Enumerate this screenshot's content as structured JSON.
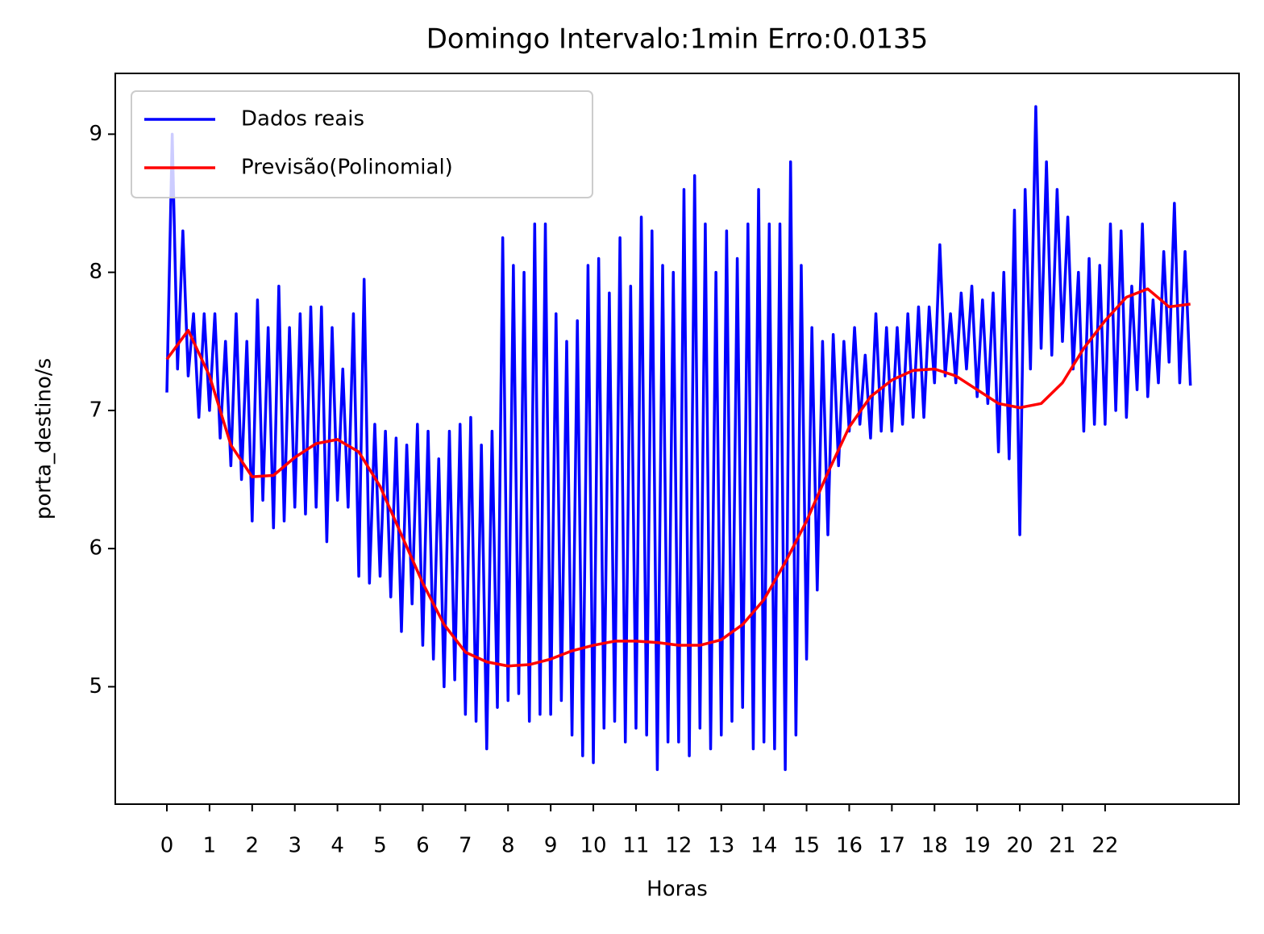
{
  "chart_data": {
    "type": "line",
    "title": "Domingo Intervalo:1min Erro:0.0135",
    "xlabel": "Horas",
    "ylabel": "porta_destino/s",
    "xlim": [
      -1.21,
      25.14
    ],
    "ylim": [
      4.15,
      9.44
    ],
    "xticks": [
      0,
      1,
      2,
      3,
      4,
      5,
      6,
      7,
      8,
      9,
      10,
      11,
      12,
      13,
      14,
      15,
      16,
      17,
      18,
      19,
      20,
      21,
      22
    ],
    "yticks": [
      5,
      6,
      7,
      8,
      9
    ],
    "legend": "upper left",
    "series": [
      {
        "name": "Dados reais",
        "color": "#0000ff",
        "x": [
          0,
          0.125,
          0.25,
          0.375,
          0.5,
          0.625,
          0.75,
          0.875,
          1,
          1.125,
          1.25,
          1.375,
          1.5,
          1.625,
          1.75,
          1.875,
          2,
          2.125,
          2.25,
          2.375,
          2.5,
          2.625,
          2.75,
          2.875,
          3,
          3.125,
          3.25,
          3.375,
          3.5,
          3.625,
          3.75,
          3.875,
          4,
          4.125,
          4.25,
          4.375,
          4.5,
          4.625,
          4.75,
          4.875,
          5,
          5.125,
          5.25,
          5.375,
          5.5,
          5.625,
          5.75,
          5.875,
          6,
          6.125,
          6.25,
          6.375,
          6.5,
          6.625,
          6.75,
          6.875,
          7,
          7.125,
          7.25,
          7.375,
          7.5,
          7.625,
          7.75,
          7.875,
          8,
          8.125,
          8.25,
          8.375,
          8.5,
          8.625,
          8.75,
          8.875,
          9,
          9.125,
          9.25,
          9.375,
          9.5,
          9.625,
          9.75,
          9.875,
          10,
          10.125,
          10.25,
          10.375,
          10.5,
          10.625,
          10.75,
          10.875,
          11,
          11.125,
          11.25,
          11.375,
          11.5,
          11.625,
          11.75,
          11.875,
          12,
          12.125,
          12.25,
          12.375,
          12.5,
          12.625,
          12.75,
          12.875,
          13,
          13.125,
          13.25,
          13.375,
          13.5,
          13.625,
          13.75,
          13.875,
          14,
          14.125,
          14.25,
          14.375,
          14.5,
          14.625,
          14.75,
          14.875,
          15,
          15.125,
          15.25,
          15.375,
          15.5,
          15.625,
          15.75,
          15.875,
          16,
          16.125,
          16.25,
          16.375,
          16.5,
          16.625,
          16.75,
          16.875,
          17,
          17.125,
          17.25,
          17.375,
          17.5,
          17.625,
          17.75,
          17.875,
          18,
          18.125,
          18.25,
          18.375,
          18.5,
          18.625,
          18.75,
          18.875,
          19,
          19.125,
          19.25,
          19.375,
          19.5,
          19.625,
          19.75,
          19.875,
          20,
          20.125,
          20.25,
          20.375,
          20.5,
          20.625,
          20.75,
          20.875,
          21,
          21.125,
          21.25,
          21.375,
          21.5,
          21.625,
          21.75,
          21.875,
          22,
          22.125,
          22.25,
          22.375,
          22.5,
          22.625,
          22.75,
          22.875,
          23,
          23.125,
          23.25,
          23.375,
          23.5,
          23.625,
          23.75,
          23.875,
          24
        ],
        "values": [
          7.13,
          9.0,
          7.3,
          8.3,
          7.25,
          7.7,
          6.95,
          7.7,
          7.0,
          7.7,
          6.8,
          7.5,
          6.6,
          7.7,
          6.5,
          7.5,
          6.2,
          7.8,
          6.35,
          7.6,
          6.15,
          7.9,
          6.2,
          7.6,
          6.3,
          7.7,
          6.25,
          7.75,
          6.3,
          7.75,
          6.05,
          7.6,
          6.35,
          7.3,
          6.3,
          7.7,
          5.8,
          7.95,
          5.75,
          6.9,
          5.8,
          6.85,
          5.65,
          6.8,
          5.4,
          6.75,
          5.6,
          6.9,
          5.3,
          6.85,
          5.2,
          6.65,
          5.0,
          6.85,
          5.05,
          6.9,
          4.8,
          6.95,
          4.75,
          6.75,
          4.55,
          6.85,
          4.85,
          8.25,
          4.9,
          8.05,
          4.95,
          8.0,
          4.75,
          8.35,
          4.8,
          8.35,
          4.8,
          7.7,
          4.9,
          7.5,
          4.65,
          7.65,
          4.5,
          8.05,
          4.45,
          8.1,
          4.7,
          7.85,
          4.75,
          8.25,
          4.6,
          7.9,
          4.7,
          8.4,
          4.65,
          8.3,
          4.4,
          8.05,
          4.6,
          8.0,
          4.6,
          8.6,
          4.5,
          8.7,
          4.7,
          8.35,
          4.55,
          8.0,
          4.65,
          8.3,
          4.75,
          8.1,
          4.85,
          8.35,
          4.55,
          8.6,
          4.6,
          8.35,
          4.55,
          8.35,
          4.4,
          8.8,
          4.65,
          8.05,
          5.2,
          7.6,
          5.7,
          7.5,
          6.1,
          7.55,
          6.6,
          7.5,
          6.85,
          7.6,
          6.9,
          7.4,
          6.8,
          7.7,
          6.85,
          7.6,
          6.85,
          7.6,
          6.9,
          7.7,
          6.95,
          7.75,
          6.95,
          7.75,
          7.2,
          8.2,
          7.25,
          7.7,
          7.2,
          7.85,
          7.3,
          7.9,
          7.1,
          7.8,
          7.05,
          7.85,
          6.7,
          8.0,
          6.65,
          8.45,
          6.1,
          8.6,
          7.3,
          9.2,
          7.45,
          8.8,
          7.4,
          8.6,
          7.5,
          8.4,
          7.3,
          8.0,
          6.85,
          8.1,
          6.9,
          8.05,
          6.9,
          8.35,
          7.0,
          8.3,
          6.95,
          7.9,
          7.15,
          8.35,
          7.1,
          7.8,
          7.2,
          8.15,
          7.35,
          8.5,
          7.2,
          8.15,
          7.18
        ]
      },
      {
        "name": "Previsão(Polinomial)",
        "color": "#ff0000",
        "x": [
          0,
          0.5,
          1,
          1.5,
          2,
          2.5,
          3,
          3.5,
          4,
          4.5,
          5,
          5.5,
          6,
          6.5,
          7,
          7.5,
          8,
          8.5,
          9,
          9.5,
          10,
          10.5,
          11,
          11.5,
          12,
          12.5,
          13,
          13.5,
          14,
          14.5,
          15,
          15.5,
          16,
          16.5,
          17,
          17.5,
          18,
          18.5,
          19,
          19.5,
          20,
          20.5,
          21,
          21.5,
          22,
          22.5,
          23,
          23.5,
          24
        ],
        "values": [
          7.37,
          7.58,
          7.25,
          6.75,
          6.52,
          6.53,
          6.66,
          6.76,
          6.79,
          6.7,
          6.45,
          6.1,
          5.75,
          5.45,
          5.25,
          5.18,
          5.15,
          5.16,
          5.2,
          5.26,
          5.3,
          5.33,
          5.33,
          5.32,
          5.3,
          5.3,
          5.34,
          5.45,
          5.63,
          5.9,
          6.2,
          6.55,
          6.88,
          7.1,
          7.22,
          7.29,
          7.3,
          7.25,
          7.15,
          7.05,
          7.02,
          7.05,
          7.2,
          7.45,
          7.65,
          7.82,
          7.88,
          7.75,
          7.77
        ]
      }
    ]
  }
}
